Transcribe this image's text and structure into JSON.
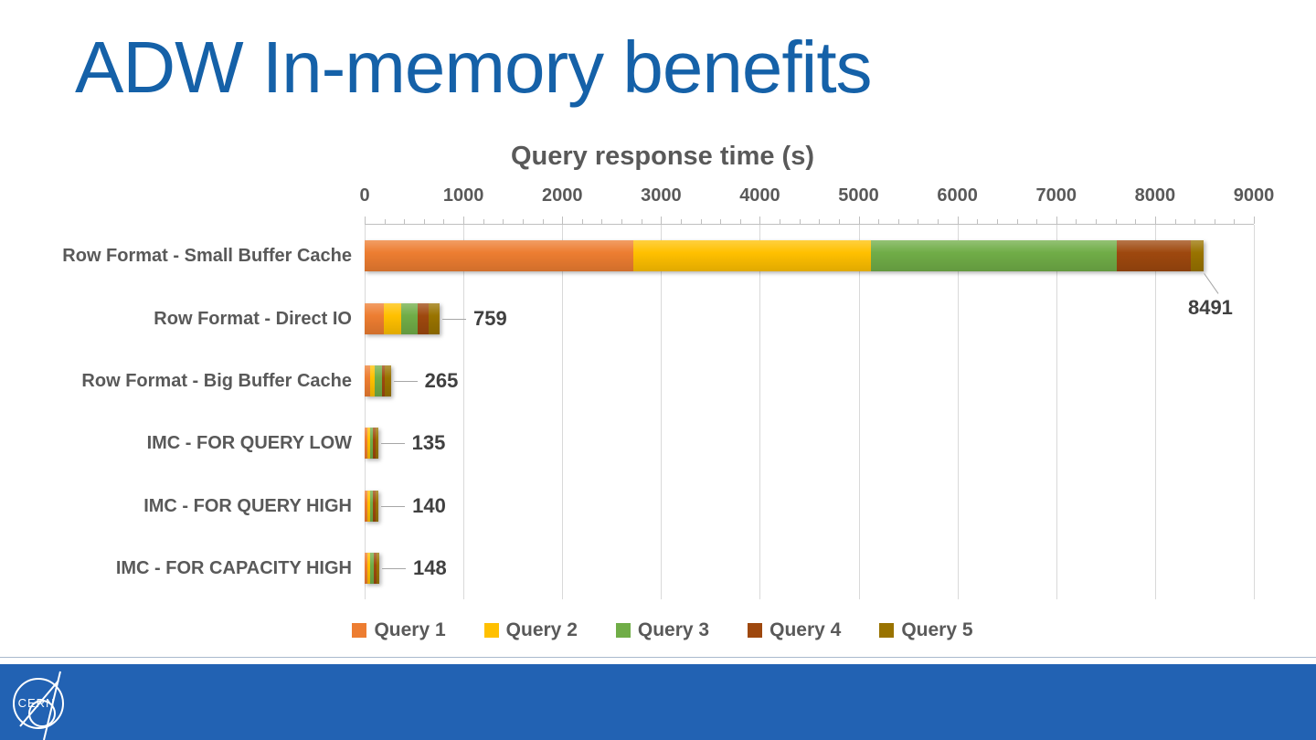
{
  "slide": {
    "title": "ADW In-memory benefits",
    "title_color": "#1561A8",
    "footer_color": "#2262B3",
    "logo_text": "CERN"
  },
  "chart_data": {
    "type": "bar",
    "stacked": true,
    "orientation": "horizontal",
    "title": "Query response time (s)",
    "categories": [
      "Row Format - Small Buffer Cache",
      "Row Format - Direct IO",
      "Row Format - Big Buffer Cache",
      "IMC - FOR QUERY LOW",
      "IMC - FOR QUERY HIGH",
      "IMC - FOR CAPACITY HIGH"
    ],
    "series": [
      {
        "name": "Query 1",
        "color": "#ED7D31",
        "values": [
          2720,
          190,
          51,
          25,
          26,
          28
        ]
      },
      {
        "name": "Query 2",
        "color": "#FFC000",
        "values": [
          2404,
          182,
          51,
          30,
          30,
          32
        ]
      },
      {
        "name": "Query 3",
        "color": "#70AD47",
        "values": [
          2487,
          163,
          77,
          30,
          32,
          32
        ]
      },
      {
        "name": "Query 4",
        "color": "#9E480E",
        "values": [
          751,
          110,
          26,
          25,
          26,
          28
        ]
      },
      {
        "name": "Query 5",
        "color": "#997300",
        "values": [
          129,
          114,
          60,
          25,
          26,
          28
        ]
      }
    ],
    "totals": [
      8491,
      759,
      265,
      135,
      140,
      148
    ],
    "xlim": [
      0,
      9000
    ],
    "x_major_tick": 1000,
    "x_minor_tick": 200,
    "grid": true,
    "legend_position": "bottom",
    "text_color": "#595959",
    "data_label_color": "#404040",
    "gridline_color": "#D9D9D9",
    "tick_color": "#BFBFBF",
    "leader_line_color": "#A6A6A6"
  }
}
